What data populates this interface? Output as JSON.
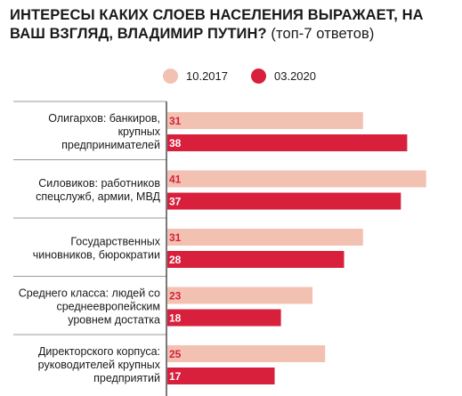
{
  "chart_data": {
    "type": "bar",
    "orientation": "horizontal",
    "title": "ИНТЕРЕСЫ КАКИХ СЛОЕВ НАСЕЛЕНИЯ ВЫРАЖАЕТ, НА ВАШ ВЗГЛЯД, ВЛАДИМИР ПУТИН?",
    "subtitle": "(топ-7 ответов)",
    "legend_position": "top-center",
    "grid": false,
    "xlim": [
      0,
      45
    ],
    "categories": [
      [
        "Олигархов: банкиров,",
        "крупных",
        "предпринимателей"
      ],
      [
        "Силовиков: работников",
        "спецслужб, армии, МВД"
      ],
      [
        "Государственных",
        "чиновников, бюрократии"
      ],
      [
        "Среднего класса: людей со",
        "среднеевропейским",
        "уровнем достатка"
      ],
      [
        "Директорского корпуса:",
        "руководителей крупных",
        "предприятий"
      ]
    ],
    "series": [
      {
        "name": "10.2017",
        "color": "#f2c1b1",
        "label_color": "#d81f3c",
        "values": [
          31,
          41,
          31,
          23,
          25
        ]
      },
      {
        "name": "03.2020",
        "color": "#d81f3c",
        "label_color": "#ffffff",
        "values": [
          38,
          37,
          28,
          18,
          17
        ]
      }
    ]
  }
}
